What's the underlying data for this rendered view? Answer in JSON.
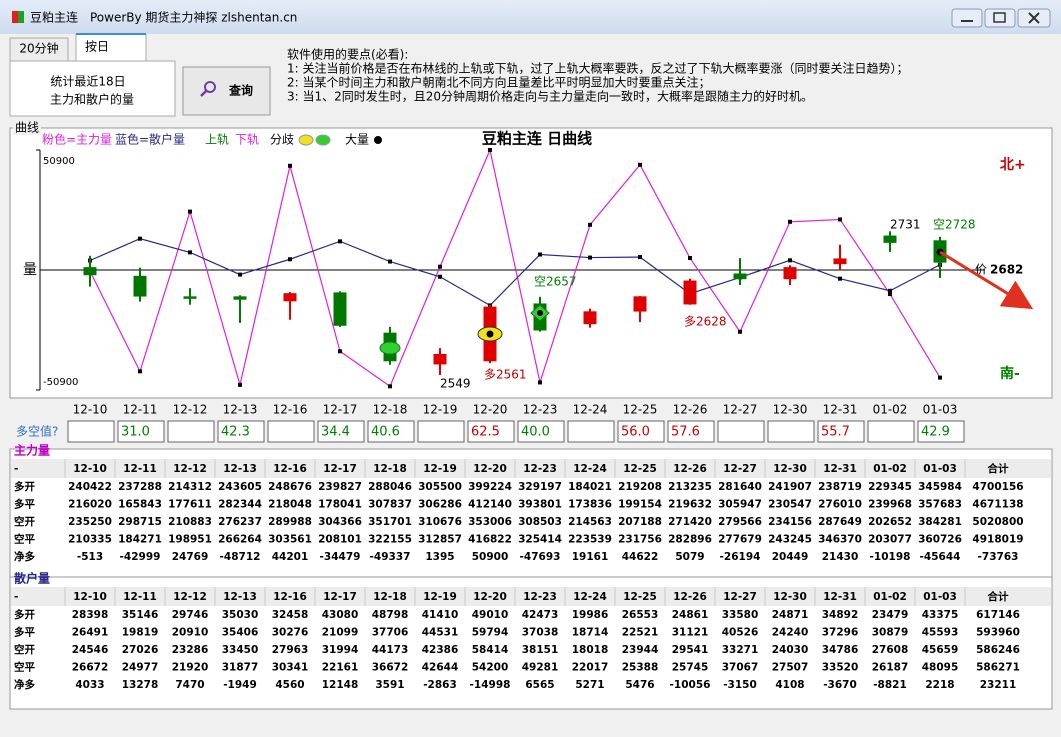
{
  "window": {
    "title": "豆粕主连",
    "subtitle": "PowerBy 期货主力神探 zlshentan.cn"
  },
  "tabs": [
    "20分钟",
    "按日"
  ],
  "panel": {
    "lines": [
      "统计最近18日",
      "主力和散户的量"
    ],
    "button": "查询"
  },
  "instructions": [
    "软件使用的要点(必看):",
    "1: 关注当前价格是否在布林线的上轨或下轨，过了上轨大概率要跌，反之过了下轨大概率要涨（同时要关注日趋势）；",
    "2: 当某个时间主力和散户朝南北不同方向且量差比平时明显加大时要重点关注；",
    "3: 当1、2同时发生时，且20分钟周期价格走向与主力量走向一致时，大概率是跟随主力的好时机。"
  ],
  "chart_data": {
    "type": "candlestick",
    "group_label": "曲线",
    "title": "豆粕主连 日曲线",
    "series": [
      {
        "name": "粉色=主力量",
        "color": "#e020e0"
      },
      {
        "name": "蓝色=散户量",
        "color": "#28288c"
      }
    ],
    "legend_extra": [
      {
        "name": "上轨",
        "color": "#008000"
      },
      {
        "name": "下轨",
        "color": "#e020e0"
      },
      {
        "name": "分歧",
        "color": "#000000"
      },
      {
        "name": "大量",
        "color": "#000000"
      }
    ],
    "categories": [
      "12-10",
      "12-11",
      "12-12",
      "12-13",
      "12-16",
      "12-17",
      "12-18",
      "12-19",
      "12-20",
      "12-23",
      "12-24",
      "12-25",
      "12-26",
      "12-27",
      "12-30",
      "12-31",
      "01-02",
      "01-03"
    ],
    "ylabel": "量",
    "ylim": [
      -50900,
      50900
    ],
    "yticks": [
      50900,
      -50900
    ],
    "y2lim": [
      2530,
      2834
    ],
    "candles": {
      "open": [
        2685,
        2674,
        2648,
        2648,
        2643,
        2653,
        2602,
        2563,
        2567,
        2639,
        2614,
        2630,
        2639,
        2677,
        2671,
        2690,
        2725,
        2719
      ],
      "high": [
        2700,
        2685,
        2659,
        2650,
        2654,
        2655,
        2610,
        2583,
        2638,
        2648,
        2633,
        2649,
        2671,
        2697,
        2688,
        2714,
        2731,
        2724
      ],
      "low": [
        2661,
        2642,
        2638,
        2615,
        2619,
        2610,
        2562,
        2549,
        2564,
        2604,
        2609,
        2616,
        2638,
        2663,
        2663,
        2682,
        2705,
        2672
      ],
      "close": [
        2676,
        2649,
        2647,
        2645,
        2652,
        2612,
        2567,
        2575,
        2635,
        2606,
        2629,
        2648,
        2668,
        2671,
        2685,
        2696,
        2717,
        2692
      ],
      "up_color": "#e00000",
      "down_color": "#007800"
    },
    "annotations": [
      "2549",
      "多2561",
      "空2657",
      "多2628",
      "2731",
      "空2728"
    ],
    "north_label": "北+",
    "south_label": "南-",
    "last_price_label": "价",
    "last_price": 2682
  },
  "ratio": {
    "label": "多空值?",
    "values": [
      null,
      "31.0",
      null,
      "42.3",
      null,
      "34.4",
      "40.6",
      null,
      "62.5",
      "40.0",
      null,
      "56.0",
      "57.6",
      null,
      null,
      "55.7",
      null,
      "42.9"
    ]
  },
  "main_table": {
    "label": "主力量",
    "header": [
      "-",
      "12-10",
      "12-11",
      "12-12",
      "12-13",
      "12-16",
      "12-17",
      "12-18",
      "12-19",
      "12-20",
      "12-23",
      "12-24",
      "12-25",
      "12-26",
      "12-27",
      "12-30",
      "12-31",
      "01-02",
      "01-03",
      "合计"
    ],
    "rows": [
      {
        "label": "多开",
        "values": [
          240422,
          237288,
          214312,
          243605,
          248676,
          239827,
          288046,
          305500,
          399224,
          329197,
          184021,
          219208,
          213235,
          281640,
          241907,
          238719,
          229345,
          345984
        ],
        "total": 4700156
      },
      {
        "label": "多平",
        "values": [
          216020,
          165843,
          177611,
          282344,
          218048,
          178041,
          307837,
          306286,
          412140,
          393801,
          173836,
          199154,
          219632,
          305947,
          230547,
          276010,
          239968,
          357683
        ],
        "total": 4671138
      },
      {
        "label": "空开",
        "values": [
          235250,
          298715,
          210883,
          276237,
          289988,
          304366,
          351701,
          310676,
          353006,
          308503,
          214563,
          207188,
          271420,
          279566,
          234156,
          287649,
          202652,
          384281
        ],
        "total": 5020800
      },
      {
        "label": "空平",
        "values": [
          210335,
          184271,
          198951,
          266264,
          303561,
          208101,
          322155,
          312857,
          416822,
          325414,
          223539,
          231756,
          282896,
          277679,
          243245,
          346370,
          203077,
          360726
        ],
        "total": 4918019
      },
      {
        "label": "净多",
        "values": [
          -513,
          -42999,
          24769,
          -48712,
          44201,
          -34479,
          -49337,
          1395,
          50900,
          -47693,
          19161,
          44622,
          5079,
          -26194,
          20449,
          21430,
          -10198,
          -45644
        ],
        "total": -73763
      }
    ]
  },
  "retail_table": {
    "label": "散户量",
    "header": [
      "-",
      "12-10",
      "12-11",
      "12-12",
      "12-13",
      "12-16",
      "12-17",
      "12-18",
      "12-19",
      "12-20",
      "12-23",
      "12-24",
      "12-25",
      "12-26",
      "12-27",
      "12-30",
      "12-31",
      "01-02",
      "01-03",
      "合计"
    ],
    "rows": [
      {
        "label": "多开",
        "values": [
          28398,
          35146,
          29746,
          35030,
          32458,
          43080,
          48798,
          41410,
          49010,
          42473,
          19986,
          26553,
          24861,
          33580,
          24871,
          34892,
          23479,
          43375
        ],
        "total": 617146
      },
      {
        "label": "多平",
        "values": [
          26491,
          19819,
          20910,
          35406,
          30276,
          21099,
          37706,
          44531,
          59794,
          37038,
          18714,
          22521,
          31121,
          40526,
          24240,
          37296,
          30879,
          45593
        ],
        "total": 593960
      },
      {
        "label": "空开",
        "values": [
          24546,
          27026,
          23286,
          33450,
          27963,
          31994,
          44173,
          42386,
          58414,
          38151,
          18018,
          23944,
          29541,
          33271,
          24030,
          34786,
          27608,
          45659
        ],
        "total": 586246
      },
      {
        "label": "空平",
        "values": [
          26672,
          24977,
          21920,
          31877,
          30341,
          22161,
          36672,
          42644,
          54200,
          49281,
          22017,
          25388,
          25745,
          37067,
          27507,
          33520,
          26187,
          48095
        ],
        "total": 586271
      },
      {
        "label": "净多",
        "values": [
          4033,
          13278,
          7470,
          -1949,
          4560,
          12148,
          3591,
          -2863,
          -14998,
          6565,
          5271,
          5476,
          -10056,
          -3150,
          4108,
          -3670,
          -8821,
          2218
        ],
        "total": 23211
      }
    ]
  }
}
